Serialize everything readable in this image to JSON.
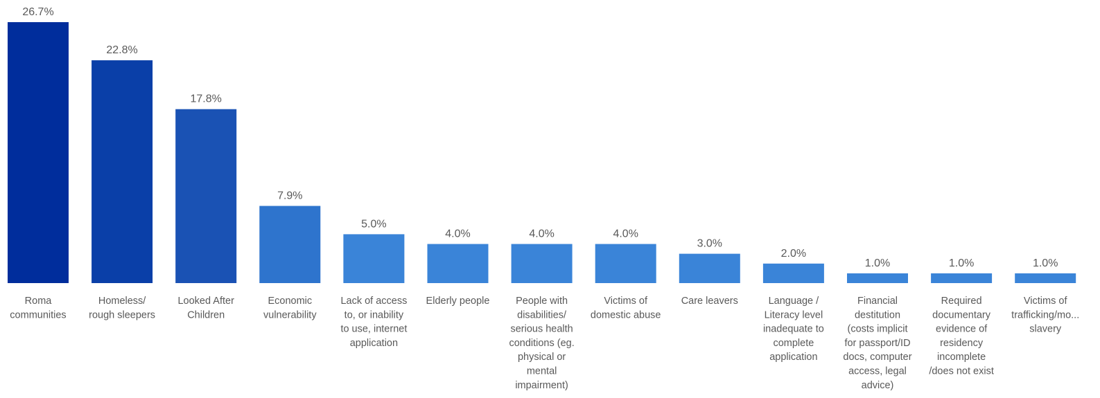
{
  "chart_data": {
    "type": "bar",
    "title": "",
    "xlabel": "",
    "ylabel": "",
    "ylim": [
      0,
      26.7
    ],
    "grid": false,
    "legend": "none",
    "categories": [
      "Roma communities",
      "Homeless/ rough sleepers",
      "Looked After Children",
      "Economic vulnerability",
      "Lack of access to, or inability to use, internet application",
      "Elderly people",
      "People with disabilities/ serious health conditions (eg. physical or mental impairment)",
      "Victims of domestic abuse",
      "Care leavers",
      "Language / Literacy level inadequate to complete application",
      "Financial destitution (costs implicit for passport/ID docs, computer access, legal advice)",
      "Required documentary evidence of residency incomplete /does not exist",
      "Victims of trafficking/mo... slavery"
    ],
    "category_label_lines": [
      [
        "Roma",
        "communities"
      ],
      [
        "Homeless/",
        "rough sleepers"
      ],
      [
        "Looked After",
        "Children"
      ],
      [
        "Economic",
        "vulnerability"
      ],
      [
        "Lack of access",
        "to, or inability",
        "to use, internet",
        "application"
      ],
      [
        "Elderly people"
      ],
      [
        "People with",
        "disabilities/",
        "serious health",
        "conditions (eg.",
        "physical or",
        "mental",
        "impairment)"
      ],
      [
        "Victims of",
        "domestic abuse"
      ],
      [
        "Care leavers"
      ],
      [
        "Language /",
        "Literacy level",
        "inadequate to",
        "complete",
        "application"
      ],
      [
        "Financial",
        "destitution",
        "(costs implicit",
        "for passport/ID",
        "docs, computer",
        "access, legal",
        "advice)"
      ],
      [
        "Required",
        "documentary",
        "evidence of",
        "residency",
        "incomplete",
        "/does not exist"
      ],
      [
        "Victims of",
        "trafficking/mo...",
        "slavery"
      ]
    ],
    "values": [
      26.7,
      22.8,
      17.8,
      7.9,
      5.0,
      4.0,
      4.0,
      4.0,
      3.0,
      2.0,
      1.0,
      1.0,
      1.0
    ],
    "value_labels": [
      "26.7%",
      "22.8%",
      "17.8%",
      "7.9%",
      "5.0%",
      "4.0%",
      "4.0%",
      "4.0%",
      "3.0%",
      "2.0%",
      "1.0%",
      "1.0%",
      "1.0%"
    ],
    "bar_colors": [
      "#002d9c",
      "#0a3fa8",
      "#1a52b4",
      "#2e74cd",
      "#3a84d8",
      "#3a84d8",
      "#3a84d8",
      "#3a84d8",
      "#3a84d8",
      "#3a84d8",
      "#3a84d8",
      "#3a84d8",
      "#3a84d8"
    ]
  }
}
